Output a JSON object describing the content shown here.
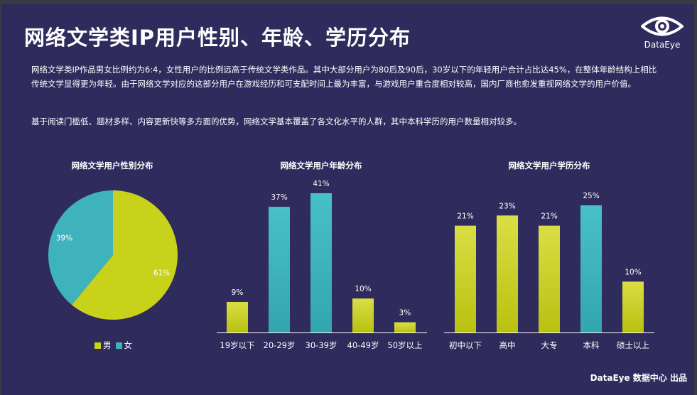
{
  "page": {
    "title": "网络文学类IP用户性别、年龄、学历分布",
    "logo_text": "DataEye",
    "paragraph1": "网络文学类IP作品男女比例约为6:4，女性用户的比例远高于传统文学类作品。其中大部分用户为80后及90后，30岁以下的年轻用户合计占比达45%，在整体年龄结构上相比传统文学显得更为年轻。由于网络文学对应的这部分用户在游戏经历和可支配时间上最为丰富，与游戏用户重合度相对较高，国内厂商也愈发重视网络文学的用户价值。",
    "paragraph2": "基于阅读门槛低、题材多样、内容更新快等多方面的优势，网络文学基本覆盖了各文化水平的人群，其中本科学历的用户数量相对较多。",
    "footer": "DataEye 数据中心 出品"
  },
  "colors": {
    "background": "#2f2b5c",
    "yellow_green": "#c8d21a",
    "teal": "#3fb3bd"
  },
  "chart_data": [
    {
      "type": "pie",
      "title": "网络文学用户性别分布",
      "slices": [
        {
          "label": "男",
          "value": 61,
          "data_label": "61%",
          "color": "#c8d21a"
        },
        {
          "label": "女",
          "value": 39,
          "data_label": "39%",
          "color": "#3fb3bd"
        }
      ],
      "legend": [
        "男",
        "女"
      ],
      "legend_placement": "bottom"
    },
    {
      "type": "bar",
      "title": "网络文学用户年龄分布",
      "categories": [
        "19岁以下",
        "20-29岁",
        "30-39岁",
        "40-49岁",
        "50岁以上"
      ],
      "values": [
        9,
        37,
        41,
        10,
        3
      ],
      "data_labels": [
        "9%",
        "37%",
        "41%",
        "10%",
        "3%"
      ],
      "colors": [
        "#c8d21a",
        "#3fb3bd",
        "#3fb3bd",
        "#c8d21a",
        "#c8d21a"
      ],
      "ylim": [
        0,
        41
      ]
    },
    {
      "type": "bar",
      "title": "网络文学用户学历分布",
      "categories": [
        "初中以下",
        "高中",
        "大专",
        "本科",
        "硕士以上"
      ],
      "values": [
        21,
        23,
        21,
        25,
        10
      ],
      "data_labels": [
        "21%",
        "23%",
        "21%",
        "25%",
        "10%"
      ],
      "colors": [
        "#c8d21a",
        "#c8d21a",
        "#c8d21a",
        "#3fb3bd",
        "#c8d21a"
      ],
      "ylim": [
        0,
        25
      ]
    }
  ]
}
